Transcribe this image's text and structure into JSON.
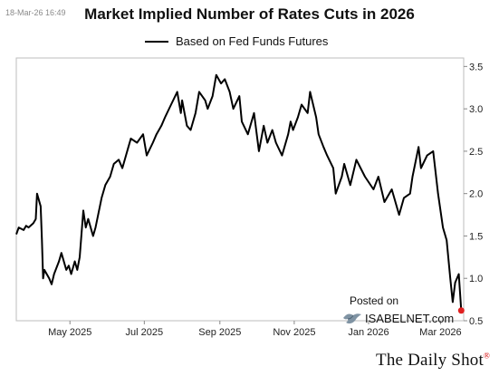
{
  "timestamp": "18-Mar-26 16:49",
  "chart_data": {
    "type": "line",
    "title": "Market Implied Number of Rates Cuts in 2026",
    "series": [
      {
        "name": "Based on Fed Funds Futures",
        "color": "#000000",
        "x": [
          "2025-03-18",
          "2025-03-20",
          "2025-03-24",
          "2025-03-26",
          "2025-03-28",
          "2025-04-01",
          "2025-04-03",
          "2025-04-04",
          "2025-04-07",
          "2025-04-08",
          "2025-04-09",
          "2025-04-10",
          "2025-04-14",
          "2025-04-16",
          "2025-04-18",
          "2025-04-22",
          "2025-04-24",
          "2025-04-28",
          "2025-04-30",
          "2025-05-02",
          "2025-05-05",
          "2025-05-07",
          "2025-05-09",
          "2025-05-12",
          "2025-05-14",
          "2025-05-16",
          "2025-05-20",
          "2025-05-22",
          "2025-05-27",
          "2025-05-30",
          "2025-06-03",
          "2025-06-06",
          "2025-06-10",
          "2025-06-13",
          "2025-06-18",
          "2025-06-20",
          "2025-06-25",
          "2025-06-30",
          "2025-07-03",
          "2025-07-08",
          "2025-07-11",
          "2025-07-15",
          "2025-07-18",
          "2025-07-23",
          "2025-07-28",
          "2025-07-31",
          "2025-08-01",
          "2025-08-05",
          "2025-08-08",
          "2025-08-12",
          "2025-08-15",
          "2025-08-20",
          "2025-08-22",
          "2025-08-26",
          "2025-08-29",
          "2025-09-02",
          "2025-09-05",
          "2025-09-09",
          "2025-09-12",
          "2025-09-17",
          "2025-09-19",
          "2025-09-24",
          "2025-09-29",
          "2025-10-03",
          "2025-10-07",
          "2025-10-10",
          "2025-10-14",
          "2025-10-17",
          "2025-10-22",
          "2025-10-27",
          "2025-10-29",
          "2025-10-31",
          "2025-11-04",
          "2025-11-07",
          "2025-11-12",
          "2025-11-14",
          "2025-11-19",
          "2025-11-21",
          "2025-11-25",
          "2025-11-28",
          "2025-12-03",
          "2025-12-05",
          "2025-12-10",
          "2025-12-12",
          "2025-12-17",
          "2025-12-22",
          "2025-12-29",
          "2026-01-05",
          "2026-01-09",
          "2026-01-14",
          "2026-01-20",
          "2026-01-26",
          "2026-01-30",
          "2026-02-04",
          "2026-02-06",
          "2026-02-11",
          "2026-02-13",
          "2026-02-18",
          "2026-02-23",
          "2026-02-27",
          "2026-03-03",
          "2026-03-06",
          "2026-03-09",
          "2026-03-11",
          "2026-03-13",
          "2026-03-16",
          "2026-03-18"
        ],
        "y": [
          1.52,
          1.6,
          1.57,
          1.62,
          1.6,
          1.65,
          1.7,
          2.0,
          1.85,
          1.45,
          1.0,
          1.1,
          1.0,
          0.93,
          1.05,
          1.2,
          1.3,
          1.1,
          1.15,
          1.05,
          1.2,
          1.1,
          1.25,
          1.8,
          1.6,
          1.7,
          1.5,
          1.6,
          1.95,
          2.1,
          2.2,
          2.35,
          2.4,
          2.3,
          2.55,
          2.65,
          2.6,
          2.7,
          2.45,
          2.6,
          2.7,
          2.8,
          2.9,
          3.05,
          3.2,
          2.95,
          3.1,
          2.8,
          2.75,
          2.95,
          3.2,
          3.1,
          3.0,
          3.15,
          3.4,
          3.3,
          3.35,
          3.2,
          3.0,
          3.15,
          2.85,
          2.7,
          2.95,
          2.5,
          2.8,
          2.6,
          2.75,
          2.6,
          2.45,
          2.7,
          2.85,
          2.75,
          2.9,
          3.05,
          2.95,
          3.2,
          2.9,
          2.7,
          2.55,
          2.45,
          2.3,
          2.0,
          2.2,
          2.35,
          2.1,
          2.4,
          2.2,
          2.05,
          2.2,
          1.9,
          2.05,
          1.75,
          1.95,
          2.0,
          2.2,
          2.55,
          2.3,
          2.45,
          2.5,
          2.0,
          1.6,
          1.45,
          1.0,
          0.72,
          0.95,
          1.05,
          0.62
        ],
        "last_point_color": "#e02020"
      }
    ],
    "xticks": [
      {
        "label": "May 2025",
        "date": "2025-05-01"
      },
      {
        "label": "Jul 2025",
        "date": "2025-07-01"
      },
      {
        "label": "Sep 2025",
        "date": "2025-09-01"
      },
      {
        "label": "Nov 2025",
        "date": "2025-11-01"
      },
      {
        "label": "Jan 2026",
        "date": "2026-01-01"
      },
      {
        "label": "Mar 2026",
        "date": "2026-03-01"
      }
    ],
    "yticks": [
      0.5,
      1.0,
      1.5,
      2.0,
      2.5,
      3.0,
      3.5
    ],
    "ytick_labels": [
      "0.5",
      "1.0",
      "1.5",
      "2.0",
      "2.5",
      "3.0",
      "3.5"
    ],
    "ylim": [
      0.5,
      3.6
    ],
    "xlim": [
      "2025-03-18",
      "2026-03-20"
    ],
    "y_axis_side": "right",
    "grid": false,
    "legend": "top"
  },
  "watermark": {
    "posted_on": "Posted on",
    "site": "ISABELNET.com"
  },
  "brand": {
    "name": "The Daily Shot",
    "dot": "®"
  }
}
